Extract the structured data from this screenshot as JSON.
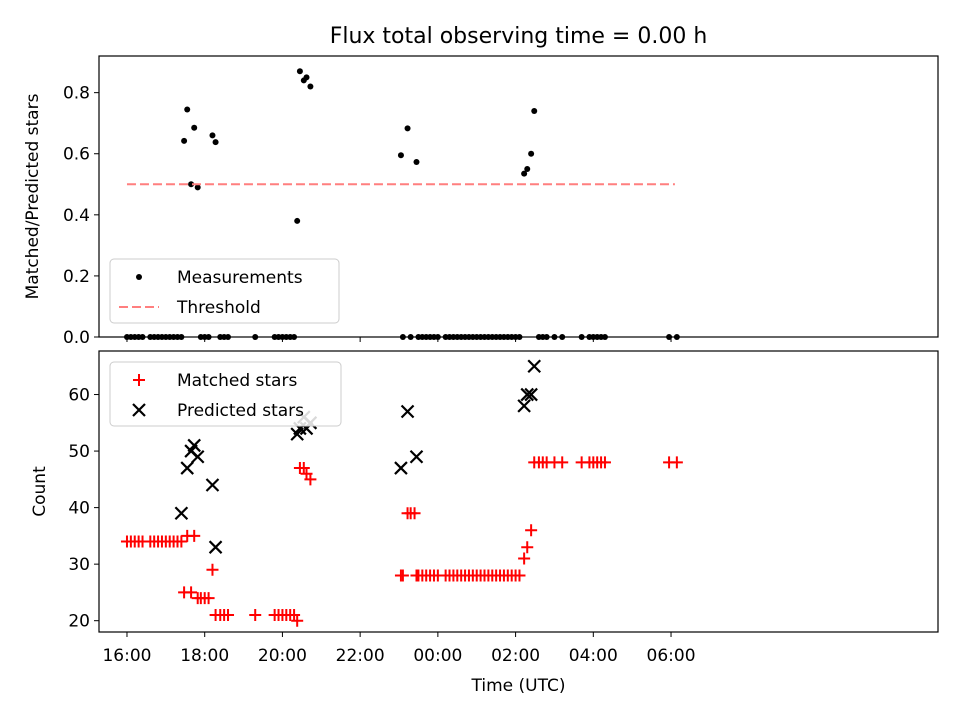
{
  "title": "Flux total observing time = 0.00 h",
  "chart_data": [
    {
      "type": "scatter",
      "ylabel": "Matched/Predicted stars",
      "xlabel": "",
      "ylim": [
        0.0,
        0.92
      ],
      "yticks": [
        0.0,
        0.2,
        0.4,
        0.6,
        0.8
      ],
      "ytick_labels": [
        "0.0",
        "0.2",
        "0.4",
        "0.6",
        "0.8"
      ],
      "x_range_hours_after_16": [
        -0.72,
        20.87
      ],
      "grid": false,
      "legend_location": "lower left",
      "series": [
        {
          "name": "Measurements",
          "color": "#000000",
          "marker": "dot",
          "points": [
            [
              0.0,
              0.0
            ],
            [
              0.1,
              0.0
            ],
            [
              0.2,
              0.0
            ],
            [
              0.3,
              0.0
            ],
            [
              0.4,
              0.0
            ],
            [
              0.6,
              0.0
            ],
            [
              0.7,
              0.0
            ],
            [
              0.8,
              0.0
            ],
            [
              0.9,
              0.0
            ],
            [
              1.0,
              0.0
            ],
            [
              1.1,
              0.0
            ],
            [
              1.2,
              0.0
            ],
            [
              1.3,
              0.0
            ],
            [
              1.4,
              0.0
            ],
            [
              1.47,
              0.642
            ],
            [
              1.55,
              0.745
            ],
            [
              1.65,
              0.5
            ],
            [
              1.73,
              0.685
            ],
            [
              1.82,
              0.49
            ],
            [
              1.9,
              0.0
            ],
            [
              2.0,
              0.0
            ],
            [
              2.1,
              0.0
            ],
            [
              2.2,
              0.66
            ],
            [
              2.28,
              0.638
            ],
            [
              2.4,
              0.0
            ],
            [
              2.5,
              0.0
            ],
            [
              2.6,
              0.0
            ],
            [
              3.3,
              0.0
            ],
            [
              3.8,
              0.0
            ],
            [
              3.9,
              0.0
            ],
            [
              4.0,
              0.0
            ],
            [
              4.1,
              0.0
            ],
            [
              4.2,
              0.0
            ],
            [
              4.3,
              0.0
            ],
            [
              4.38,
              0.38
            ],
            [
              4.45,
              0.87
            ],
            [
              4.55,
              0.84
            ],
            [
              4.62,
              0.85
            ],
            [
              4.72,
              0.82
            ],
            [
              7.05,
              0.595
            ],
            [
              7.22,
              0.683
            ],
            [
              7.45,
              0.573
            ],
            [
              7.1,
              0.0
            ],
            [
              7.3,
              0.0
            ],
            [
              7.5,
              0.0
            ],
            [
              7.6,
              0.0
            ],
            [
              7.7,
              0.0
            ],
            [
              7.8,
              0.0
            ],
            [
              7.9,
              0.0
            ],
            [
              8.0,
              0.0
            ],
            [
              8.2,
              0.0
            ],
            [
              8.3,
              0.0
            ],
            [
              8.4,
              0.0
            ],
            [
              8.5,
              0.0
            ],
            [
              8.6,
              0.0
            ],
            [
              8.7,
              0.0
            ],
            [
              8.8,
              0.0
            ],
            [
              8.9,
              0.0
            ],
            [
              9.0,
              0.0
            ],
            [
              9.1,
              0.0
            ],
            [
              9.2,
              0.0
            ],
            [
              9.3,
              0.0
            ],
            [
              9.4,
              0.0
            ],
            [
              9.5,
              0.0
            ],
            [
              9.6,
              0.0
            ],
            [
              9.7,
              0.0
            ],
            [
              9.8,
              0.0
            ],
            [
              9.9,
              0.0
            ],
            [
              10.0,
              0.0
            ],
            [
              10.1,
              0.0
            ],
            [
              10.22,
              0.535
            ],
            [
              10.3,
              0.55
            ],
            [
              10.4,
              0.6
            ],
            [
              10.48,
              0.74
            ],
            [
              10.6,
              0.0
            ],
            [
              10.7,
              0.0
            ],
            [
              10.8,
              0.0
            ],
            [
              11.0,
              0.0
            ],
            [
              11.2,
              0.0
            ],
            [
              11.7,
              0.0
            ],
            [
              11.9,
              0.0
            ],
            [
              12.0,
              0.0
            ],
            [
              12.1,
              0.0
            ],
            [
              12.2,
              0.0
            ],
            [
              12.3,
              0.0
            ],
            [
              13.95,
              0.0
            ],
            [
              14.15,
              0.0
            ]
          ]
        },
        {
          "name": "Threshold",
          "color": "#ff7f7f",
          "style": "dashed",
          "points": [
            [
              0.0,
              0.5
            ],
            [
              14.1,
              0.5
            ]
          ]
        }
      ]
    },
    {
      "type": "scatter",
      "ylabel": "Count",
      "xlabel": "Time (UTC)",
      "ylim": [
        18.0,
        67.7
      ],
      "yticks": [
        20,
        30,
        40,
        50,
        60
      ],
      "ytick_labels": [
        "20",
        "30",
        "40",
        "50",
        "60"
      ],
      "x_range_hours_after_16": [
        -0.72,
        20.87
      ],
      "xticks_hours_after_16": [
        0,
        2,
        4,
        6,
        8,
        10,
        12,
        14
      ],
      "xtick_labels": [
        "16:00",
        "18:00",
        "20:00",
        "22:00",
        "00:00",
        "02:00",
        "04:00",
        "06:00"
      ],
      "grid": false,
      "legend_location": "upper left",
      "series": [
        {
          "name": "Matched stars",
          "color": "#ff0000",
          "marker": "plus",
          "points": [
            [
              0.0,
              34
            ],
            [
              0.1,
              34
            ],
            [
              0.2,
              34
            ],
            [
              0.3,
              34
            ],
            [
              0.4,
              34
            ],
            [
              0.6,
              34
            ],
            [
              0.7,
              34
            ],
            [
              0.8,
              34
            ],
            [
              0.9,
              34
            ],
            [
              1.0,
              34
            ],
            [
              1.1,
              34
            ],
            [
              1.2,
              34
            ],
            [
              1.3,
              34
            ],
            [
              1.4,
              34
            ],
            [
              1.47,
              25
            ],
            [
              1.55,
              35
            ],
            [
              1.65,
              25
            ],
            [
              1.73,
              35
            ],
            [
              1.82,
              24
            ],
            [
              1.9,
              24
            ],
            [
              2.0,
              24
            ],
            [
              2.1,
              24
            ],
            [
              2.2,
              29
            ],
            [
              2.28,
              21
            ],
            [
              2.4,
              21
            ],
            [
              2.5,
              21
            ],
            [
              2.6,
              21
            ],
            [
              3.3,
              21
            ],
            [
              3.8,
              21
            ],
            [
              3.9,
              21
            ],
            [
              4.0,
              21
            ],
            [
              4.1,
              21
            ],
            [
              4.2,
              21
            ],
            [
              4.3,
              21
            ],
            [
              4.38,
              20
            ],
            [
              4.45,
              47
            ],
            [
              4.55,
              47
            ],
            [
              4.62,
              46
            ],
            [
              4.72,
              45
            ],
            [
              7.05,
              28
            ],
            [
              7.22,
              39
            ],
            [
              7.3,
              39
            ],
            [
              7.4,
              39
            ],
            [
              7.45,
              28
            ],
            [
              7.1,
              28
            ],
            [
              7.5,
              28
            ],
            [
              7.6,
              28
            ],
            [
              7.7,
              28
            ],
            [
              7.8,
              28
            ],
            [
              7.9,
              28
            ],
            [
              8.0,
              28
            ],
            [
              8.2,
              28
            ],
            [
              8.3,
              28
            ],
            [
              8.4,
              28
            ],
            [
              8.5,
              28
            ],
            [
              8.6,
              28
            ],
            [
              8.7,
              28
            ],
            [
              8.8,
              28
            ],
            [
              8.9,
              28
            ],
            [
              9.0,
              28
            ],
            [
              9.1,
              28
            ],
            [
              9.2,
              28
            ],
            [
              9.3,
              28
            ],
            [
              9.4,
              28
            ],
            [
              9.5,
              28
            ],
            [
              9.6,
              28
            ],
            [
              9.7,
              28
            ],
            [
              9.8,
              28
            ],
            [
              9.9,
              28
            ],
            [
              10.0,
              28
            ],
            [
              10.1,
              28
            ],
            [
              10.22,
              31
            ],
            [
              10.3,
              33
            ],
            [
              10.4,
              36
            ],
            [
              10.48,
              48
            ],
            [
              10.6,
              48
            ],
            [
              10.7,
              48
            ],
            [
              10.8,
              48
            ],
            [
              11.0,
              48
            ],
            [
              11.2,
              48
            ],
            [
              11.7,
              48
            ],
            [
              11.9,
              48
            ],
            [
              12.0,
              48
            ],
            [
              12.1,
              48
            ],
            [
              12.2,
              48
            ],
            [
              12.3,
              48
            ],
            [
              13.95,
              48
            ],
            [
              14.15,
              48
            ]
          ]
        },
        {
          "name": "Predicted stars",
          "color": "#000000",
          "marker": "x",
          "points": [
            [
              1.4,
              39
            ],
            [
              1.55,
              47
            ],
            [
              1.65,
              50
            ],
            [
              1.73,
              51
            ],
            [
              1.82,
              49
            ],
            [
              2.2,
              44
            ],
            [
              2.28,
              33
            ],
            [
              4.38,
              53
            ],
            [
              4.45,
              54
            ],
            [
              4.55,
              56
            ],
            [
              4.62,
              54
            ],
            [
              4.72,
              55
            ],
            [
              7.05,
              47
            ],
            [
              7.22,
              57
            ],
            [
              7.45,
              49
            ],
            [
              10.22,
              58
            ],
            [
              10.3,
              60
            ],
            [
              10.4,
              60
            ],
            [
              10.48,
              65
            ]
          ]
        }
      ]
    }
  ]
}
